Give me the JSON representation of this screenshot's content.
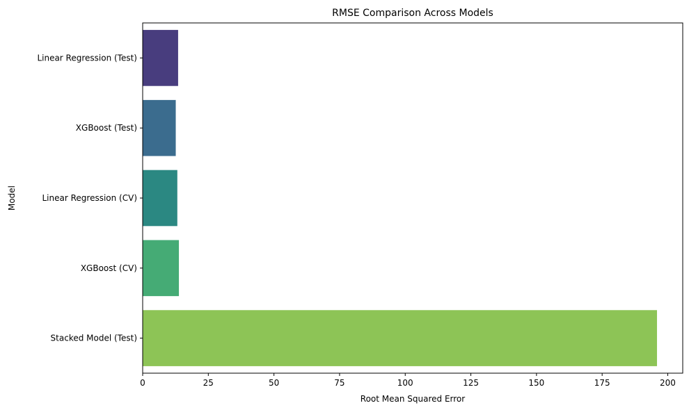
{
  "chart_data": {
    "type": "bar",
    "orientation": "horizontal",
    "title": "RMSE Comparison Across Models",
    "xlabel": "Root Mean Squared Error",
    "ylabel": "Model",
    "categories": [
      "Linear Regression (Test)",
      "XGBoost (Test)",
      "Linear Regression (CV)",
      "XGBoost (CV)",
      "Stacked Model (Test)"
    ],
    "values": [
      13.5,
      12.6,
      13.2,
      13.8,
      195.9
    ],
    "colors": [
      "#483d7e",
      "#3b6c8e",
      "#2b8882",
      "#45ab75",
      "#8dc456"
    ],
    "xlim": [
      0,
      205.7
    ],
    "xticks": [
      0,
      25,
      50,
      75,
      100,
      125,
      150,
      175,
      200
    ],
    "xtick_labels": [
      "0",
      "25",
      "50",
      "75",
      "100",
      "125",
      "150",
      "175",
      "200"
    ],
    "grid": false,
    "legend": "none"
  }
}
